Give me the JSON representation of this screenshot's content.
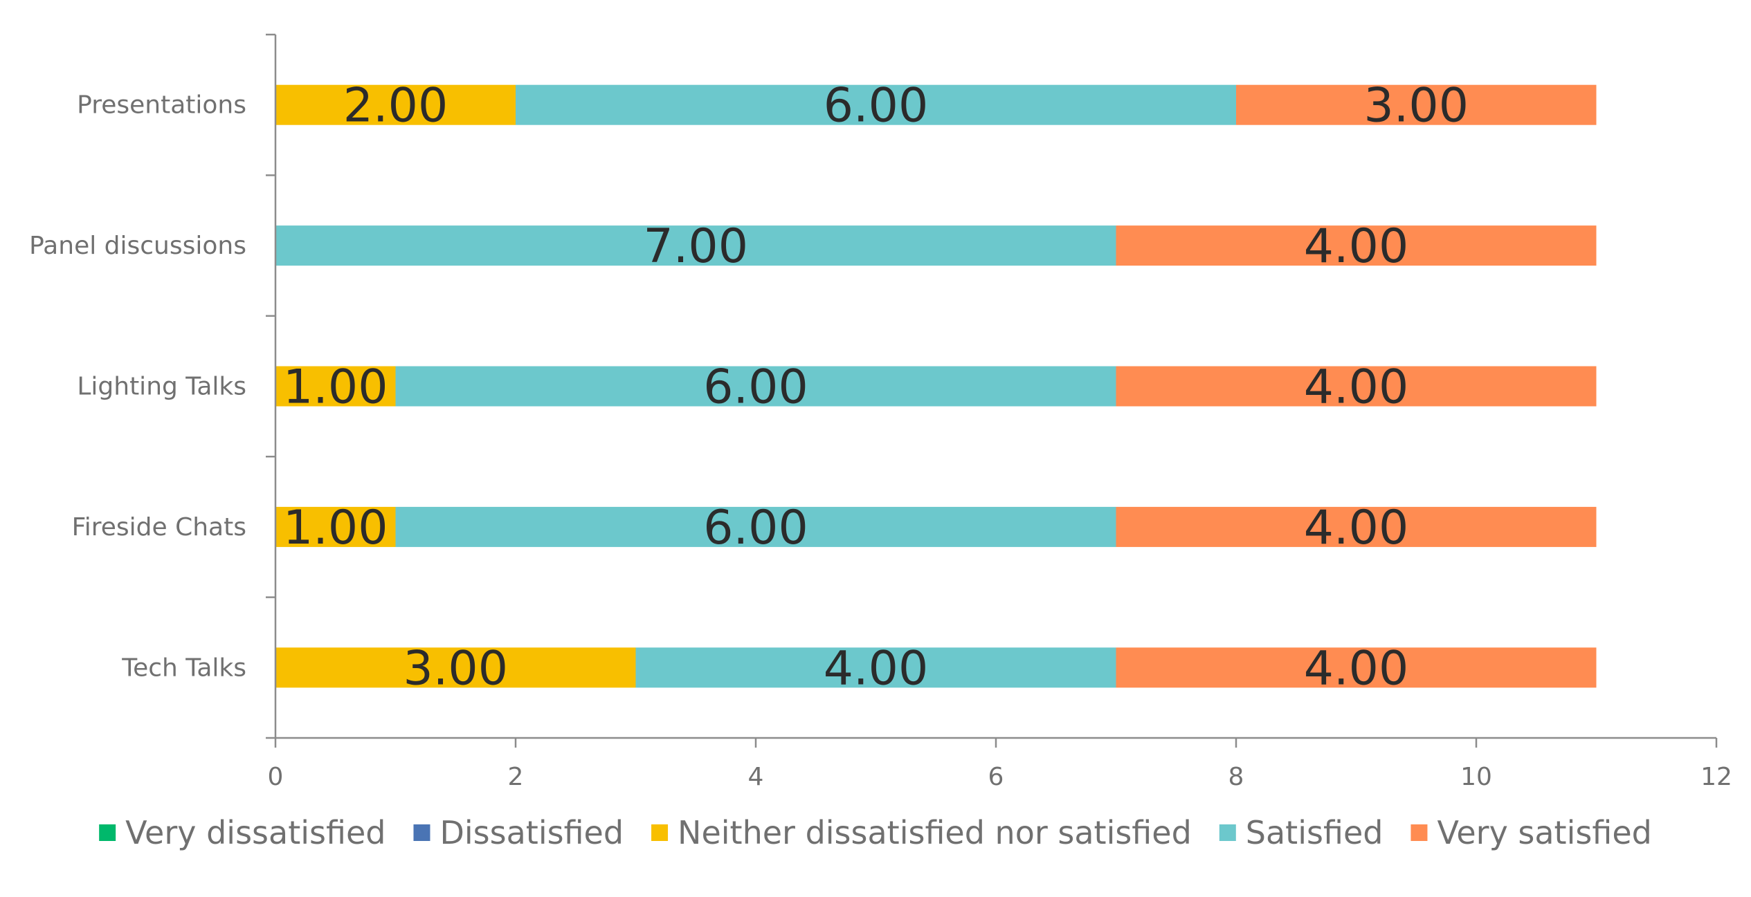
{
  "chart_data": {
    "type": "bar",
    "orientation": "horizontal",
    "stacked": true,
    "title": "",
    "xlabel": "",
    "ylabel": "",
    "xlim": [
      0,
      12
    ],
    "x_ticks": [
      0,
      2,
      4,
      6,
      8,
      10,
      12
    ],
    "grid": false,
    "legend_position": "bottom",
    "categories": [
      "Presentations",
      "Panel discussions",
      "Lighting Talks",
      "Fireside Chats",
      "Tech Talks"
    ],
    "series": [
      {
        "name": "Very dissatisfied",
        "color": "#00b86b",
        "values": [
          0,
          0,
          0,
          0,
          0
        ],
        "labels": [
          "",
          "",
          "",
          "",
          ""
        ]
      },
      {
        "name": "Dissatisfied",
        "color": "#4a74b4",
        "values": [
          0,
          0,
          0,
          0,
          0
        ],
        "labels": [
          "",
          "",
          "",
          "",
          ""
        ]
      },
      {
        "name": "Neither dissatisfied nor satisfied",
        "color": "#f8bf00",
        "values": [
          2,
          0,
          1,
          1,
          3
        ],
        "labels": [
          "2.00",
          "",
          "1.00",
          "1.00",
          "3.00"
        ]
      },
      {
        "name": "Satisfied",
        "color": "#6cc8cc",
        "values": [
          6,
          7,
          6,
          6,
          4
        ],
        "labels": [
          "6.00",
          "7.00",
          "6.00",
          "6.00",
          "4.00"
        ]
      },
      {
        "name": "Very satisfied",
        "color": "#ff8c52",
        "values": [
          3,
          4,
          4,
          4,
          4
        ],
        "labels": [
          "3.00",
          "4.00",
          "4.00",
          "4.00",
          "4.00"
        ]
      }
    ]
  }
}
